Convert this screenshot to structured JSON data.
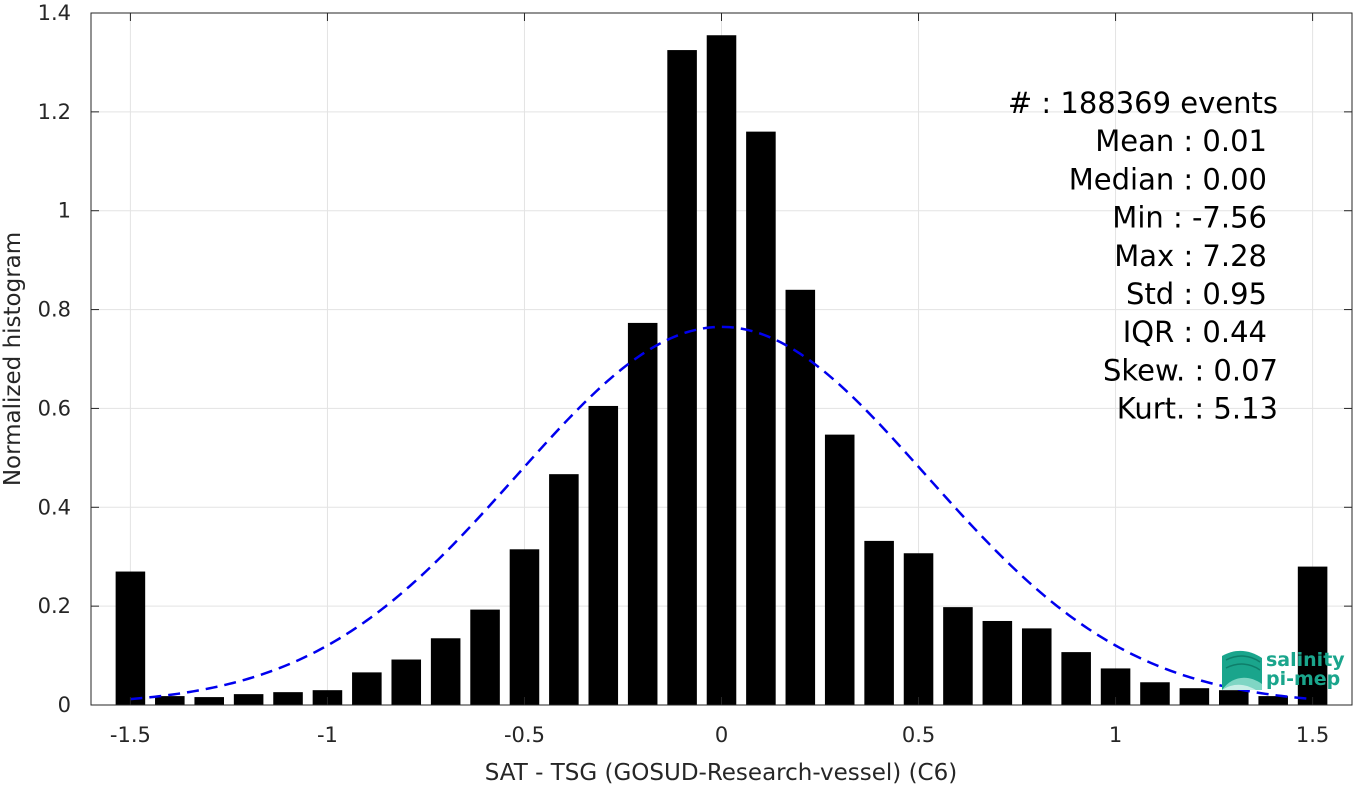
{
  "chart_data": {
    "type": "bar",
    "xlabel": "SAT - TSG (GOSUD-Research-vessel) (C6)",
    "ylabel": "Normalized histogram",
    "xlim": [
      -1.6,
      1.6
    ],
    "ylim": [
      0,
      1.4
    ],
    "grid": true,
    "bin_width": 0.1,
    "x": [
      -1.5,
      -1.4,
      -1.3,
      -1.2,
      -1.1,
      -1.0,
      -0.9,
      -0.8,
      -0.7,
      -0.6,
      -0.5,
      -0.4,
      -0.3,
      -0.2,
      -0.1,
      0.0,
      0.1,
      0.2,
      0.3,
      0.4,
      0.5,
      0.6,
      0.7,
      0.8,
      0.9,
      1.0,
      1.1,
      1.2,
      1.3,
      1.4,
      1.5
    ],
    "values": [
      0.27,
      0.018,
      0.016,
      0.022,
      0.026,
      0.03,
      0.066,
      0.092,
      0.135,
      0.193,
      0.315,
      0.467,
      0.605,
      0.773,
      1.325,
      1.355,
      1.16,
      0.84,
      0.547,
      0.332,
      0.307,
      0.198,
      0.17,
      0.155,
      0.107,
      0.074,
      0.046,
      0.034,
      0.03,
      0.018,
      0.28
    ],
    "xticks": [
      -1.5,
      -1,
      -0.5,
      0,
      0.5,
      1,
      1.5
    ],
    "xtick_labels": [
      "-1.5",
      "-1",
      "-0.5",
      "0",
      "0.5",
      "1",
      "1.5"
    ],
    "yticks": [
      0,
      0.2,
      0.4,
      0.6,
      0.8,
      1,
      1.2,
      1.4
    ],
    "ytick_labels": [
      "0",
      "0.2",
      "0.4",
      "0.6",
      "0.8",
      "1",
      "1.2",
      "1.4"
    ],
    "fit_curve": {
      "type": "gaussian",
      "mean": 0.0,
      "sigma": 0.52,
      "peak": 0.765,
      "x_range": [
        -1.5,
        1.5
      ],
      "color": "#0000ee",
      "style": "dashed"
    },
    "bar_color": "#000000",
    "stats": [
      "#  : 188369 events",
      "Mean : 0.01",
      "Median : 0.00",
      "Min : -7.56",
      "Max : 7.28",
      "Std : 0.95",
      "IQR : 0.44",
      "Skew. : 0.07",
      "Kurt. : 5.13"
    ]
  },
  "logo": {
    "line1": "salinity",
    "line2": "pi-mep",
    "color": "#1aa58c"
  }
}
